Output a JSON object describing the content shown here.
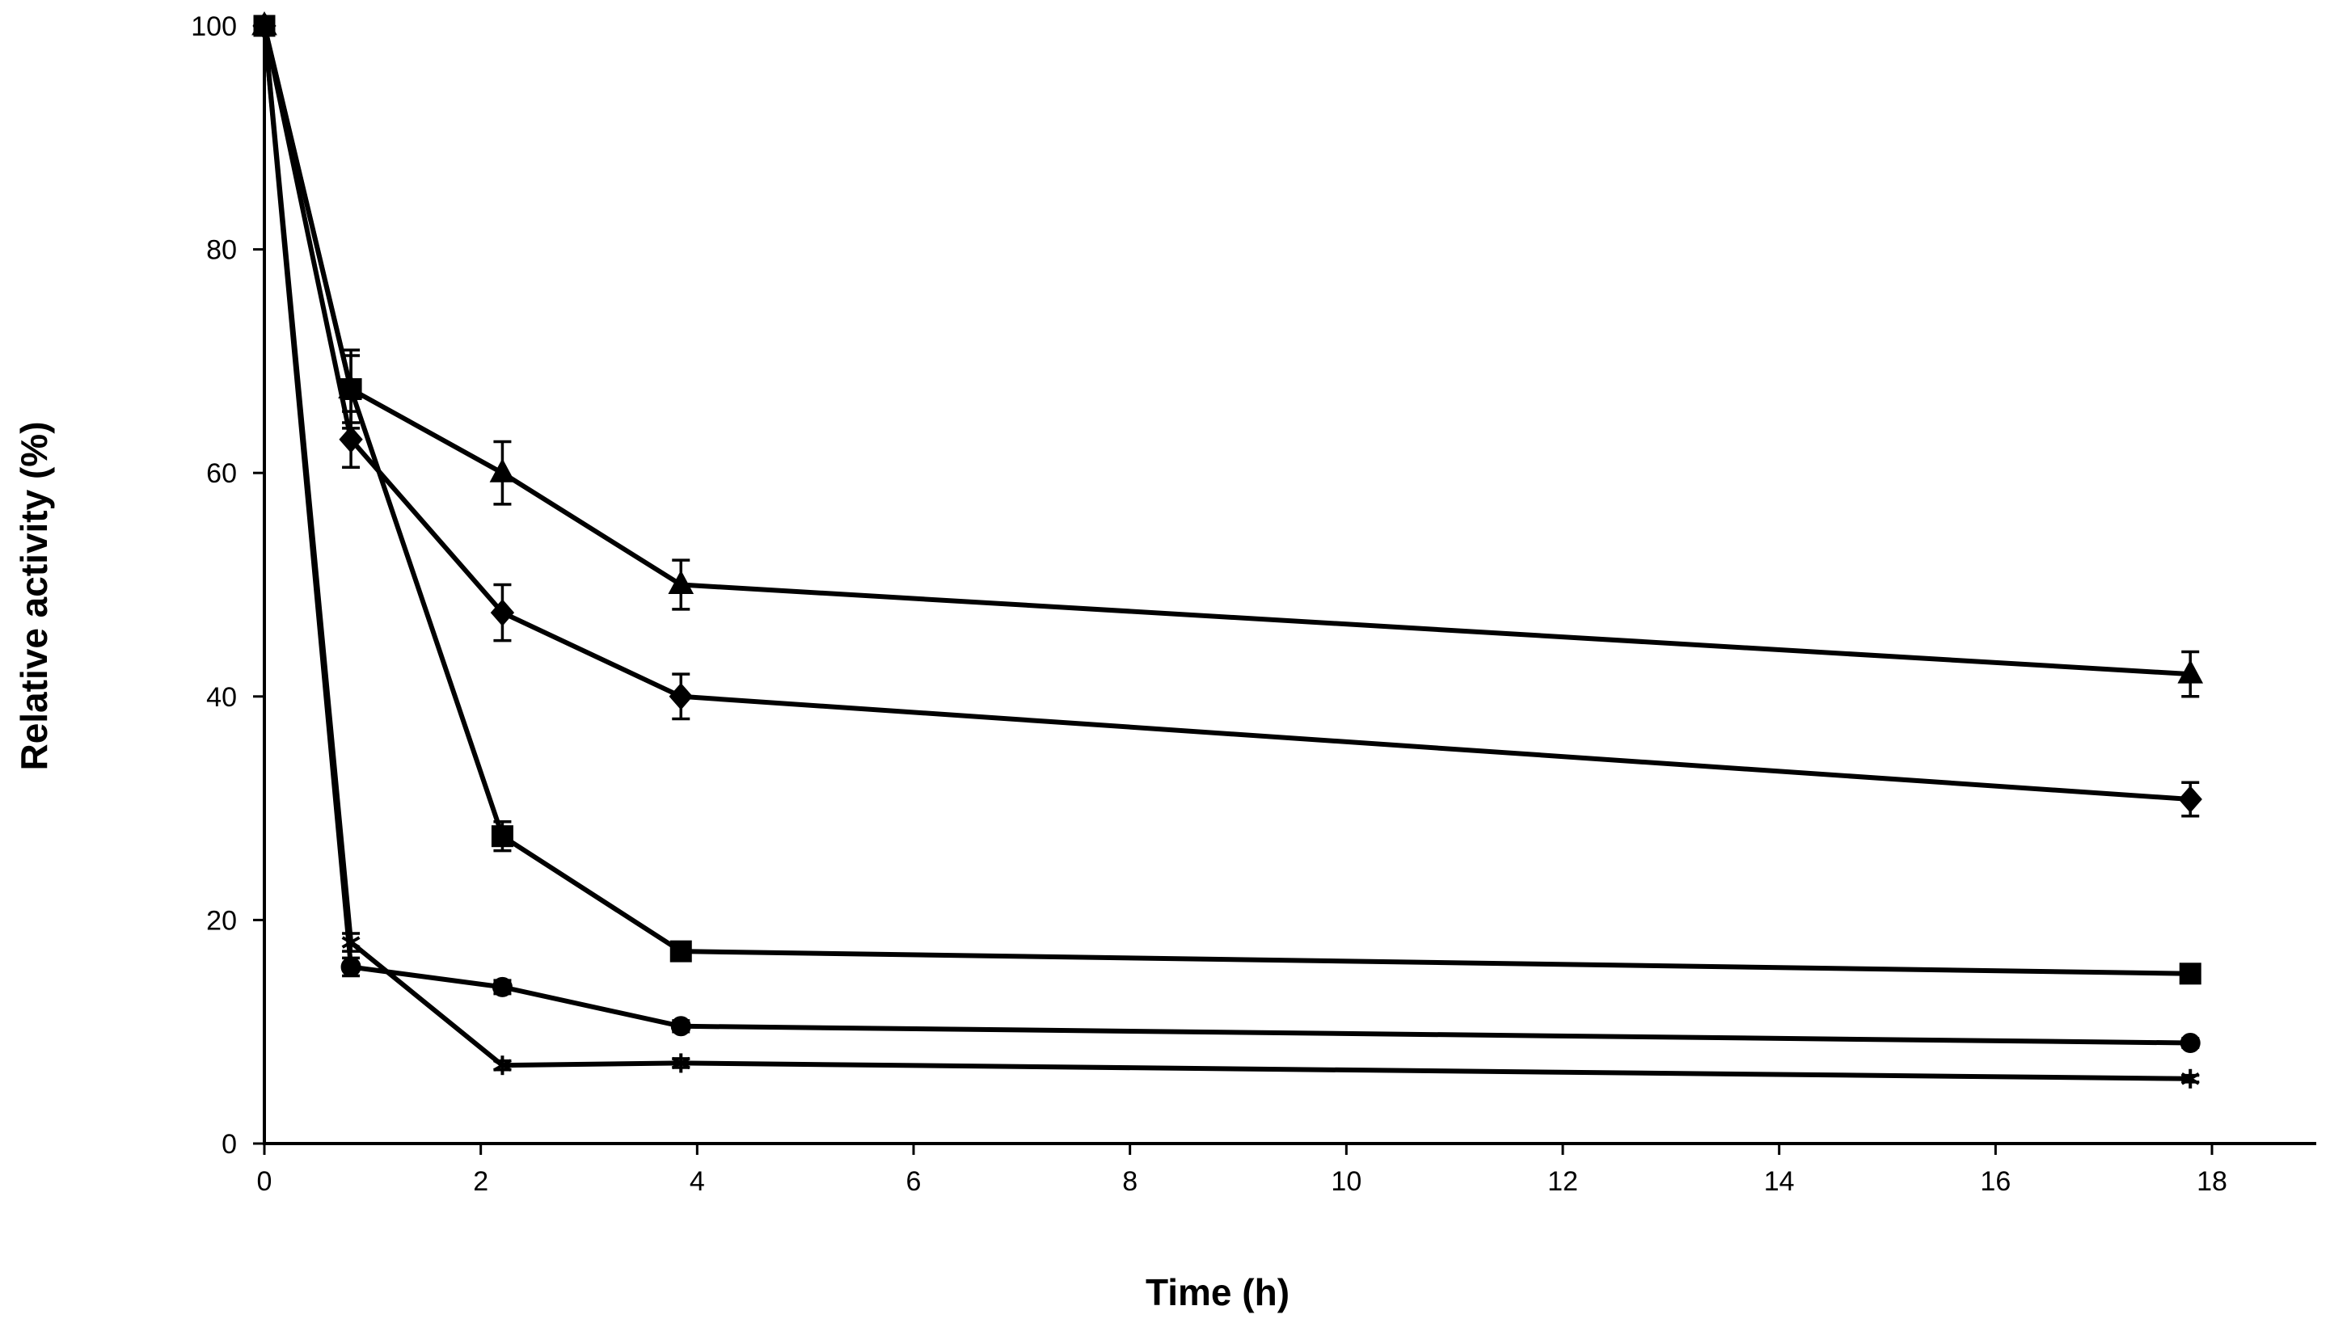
{
  "chart_data": {
    "type": "line",
    "title": "",
    "xlabel": "Time (h)",
    "ylabel": "Relative activity (%)",
    "xlim": [
      0,
      19
    ],
    "ylim": [
      0,
      100
    ],
    "xticks": [
      0,
      2,
      4,
      6,
      8,
      10,
      12,
      14,
      16,
      18
    ],
    "yticks": [
      0,
      20,
      40,
      60,
      80,
      100
    ],
    "grid": false,
    "legend": "none",
    "series": [
      {
        "name": "triangle",
        "marker": "triangle",
        "x": [
          0,
          0.8,
          2.2,
          3.85,
          17.8
        ],
        "y": [
          100,
          67.5,
          60,
          50,
          42
        ],
        "err": [
          0,
          3,
          2.8,
          2.2,
          2
        ]
      },
      {
        "name": "diamond",
        "marker": "diamond",
        "x": [
          0,
          0.8,
          2.2,
          3.85,
          17.8
        ],
        "y": [
          100,
          63,
          47.5,
          40,
          30.8
        ],
        "err": [
          0,
          2.5,
          2.5,
          2,
          1.5
        ]
      },
      {
        "name": "square",
        "marker": "square",
        "x": [
          0,
          0.8,
          2.2,
          3.85,
          17.8
        ],
        "y": [
          100,
          67.5,
          27.5,
          17.2,
          15.2
        ],
        "err": [
          0,
          3.5,
          1.3,
          0.6,
          0.5
        ]
      },
      {
        "name": "circle",
        "marker": "circle",
        "x": [
          0,
          0.8,
          2.2,
          3.85,
          17.8
        ],
        "y": [
          100,
          15.8,
          14,
          10.5,
          9
        ],
        "err": [
          0,
          0.8,
          0.6,
          0.5,
          0.4
        ]
      },
      {
        "name": "asterisk",
        "marker": "asterisk",
        "x": [
          0,
          0.8,
          2.2,
          3.85,
          17.8
        ],
        "y": [
          100,
          18,
          7,
          7.2,
          5.8
        ],
        "err": [
          0,
          0.8,
          0.4,
          0.4,
          0.3
        ]
      }
    ]
  }
}
